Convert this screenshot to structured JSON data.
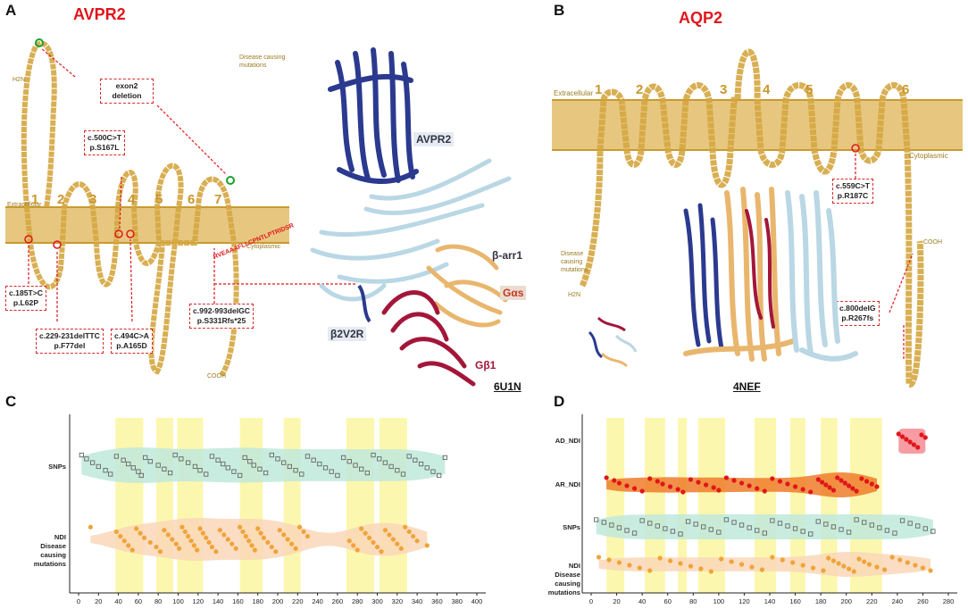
{
  "panels": {
    "A": {
      "letter": "A",
      "title": "AVPR2",
      "membrane_numbers": [
        "1",
        "2",
        "3",
        "4",
        "5",
        "6",
        "7"
      ],
      "extracellular_label": "Extracellular",
      "cytoplasmic_label": "Cytoplasmic",
      "nterm_label": "H2N",
      "cterm_label": "COOH",
      "legend": "Disease causing mutations",
      "annotations": {
        "exon2": "exon2 deletion",
        "c500": "c.500C>T\np.S167L",
        "c185": "c.185T>C\np.L62P",
        "c229": "c.229-231delTTC\np.F77del",
        "c494": "c.494C>A\np.A165D",
        "c992": "c.992-993delGC\np.S331Rfs*25"
      },
      "structure_labels": {
        "avpr2": "AVPR2",
        "barr1": "β-arr1",
        "gas": "Gαs",
        "b2v2r": "β2V2R",
        "gb1": "Gβ1"
      },
      "pdb": "6U1N",
      "cterm_sequence_text": "RVEAAAFLLCPNTLPTRIDSR"
    },
    "B": {
      "letter": "B",
      "title": "AQP2",
      "membrane_numbers": [
        "1",
        "2",
        "3",
        "4",
        "5",
        "6"
      ],
      "extracellular_label": "Extracellular",
      "cytoplasmic_label": "Cytoplasmic",
      "nterm_label": "H2N",
      "cterm_label": "COOH",
      "legend": "Disease causing mutations",
      "annotations": {
        "c559": "c.559C>T\np.R187C",
        "c800": "c.800delG\np.R267fs"
      },
      "pdb": "4NEF"
    },
    "C": {
      "letter": "C",
      "categories": [
        "SNPs",
        "NDI\nDisease\ncausing\nmutations"
      ]
    },
    "D": {
      "letter": "D",
      "categories": [
        "AD_NDI",
        "AR_NDI",
        "SNPs",
        "NDI\nDisease\ncausing\nmutations"
      ]
    }
  },
  "colors": {
    "membrane": "#e3bd6a",
    "residue": "#d4a640",
    "red": "#e0161b",
    "highlight": "#fbf59a",
    "snp_violin": "#bfe9dc",
    "ndi_violin": "#f9d7b8",
    "ar_violin": "#ef7d2a",
    "ad_violin": "#f48b92",
    "snp_marker": "#666666",
    "ndi_marker": "#f0a33a",
    "blue_helix": "#2b3a8f",
    "lightblue_helix": "#b9d7e4",
    "orange_helix": "#e9b66d",
    "crimson_helix": "#a3163a"
  },
  "chart_data": [
    {
      "type": "scatter",
      "title": "",
      "xlabel": "",
      "ylabel": "",
      "xlim": [
        0,
        400
      ],
      "x_ticks": [
        0,
        20,
        40,
        60,
        80,
        100,
        120,
        140,
        160,
        180,
        200,
        220,
        240,
        260,
        280,
        300,
        320,
        340,
        360,
        380,
        400
      ],
      "grid": false,
      "highlight_regions": [
        [
          37,
          65
        ],
        [
          78,
          95
        ],
        [
          99,
          125
        ],
        [
          162,
          185
        ],
        [
          206,
          223
        ],
        [
          269,
          297
        ],
        [
          302,
          330
        ]
      ],
      "series": [
        {
          "name": "SNPs",
          "marker": "square",
          "x": [
            3,
            8,
            14,
            20,
            27,
            32,
            38,
            45,
            50,
            55,
            60,
            63,
            67,
            72,
            80,
            86,
            92,
            97,
            103,
            110,
            117,
            122,
            128,
            134,
            140,
            145,
            150,
            156,
            162,
            167,
            172,
            176,
            182,
            188,
            194,
            200,
            206,
            212,
            218,
            224,
            230,
            236,
            242,
            248,
            254,
            260,
            266,
            272,
            278,
            284,
            290,
            296,
            302,
            308,
            314,
            320,
            326,
            332,
            338,
            344,
            350,
            356,
            362,
            368
          ]
        },
        {
          "name": "NDI Disease causing mutations",
          "marker": "circle",
          "x": [
            12,
            38,
            42,
            46,
            50,
            54,
            58,
            62,
            66,
            72,
            78,
            82,
            86,
            90,
            94,
            98,
            101,
            104,
            107,
            110,
            113,
            116,
            119,
            122,
            125,
            128,
            131,
            134,
            138,
            142,
            146,
            150,
            154,
            158,
            162,
            165,
            168,
            171,
            174,
            177,
            180,
            183,
            186,
            190,
            194,
            198,
            202,
            206,
            210,
            214,
            218,
            222,
            226,
            230,
            272,
            276,
            280,
            284,
            288,
            292,
            296,
            300,
            304,
            308,
            312,
            316,
            320,
            324,
            328,
            332,
            336,
            340,
            350
          ]
        }
      ]
    },
    {
      "type": "scatter",
      "title": "",
      "xlabel": "",
      "ylabel": "",
      "xlim": [
        0,
        280
      ],
      "x_ticks": [
        0,
        20,
        40,
        60,
        80,
        100,
        120,
        140,
        160,
        180,
        200,
        220,
        240,
        260,
        280
      ],
      "grid": false,
      "highlight_regions": [
        [
          12,
          26
        ],
        [
          42,
          58
        ],
        [
          68,
          75
        ],
        [
          84,
          105
        ],
        [
          128,
          145
        ],
        [
          156,
          168
        ],
        [
          180,
          193
        ],
        [
          203,
          228
        ]
      ],
      "series": [
        {
          "name": "AD_NDI",
          "marker": "circle",
          "x": [
            241,
            244,
            247,
            250,
            253,
            256,
            259,
            262
          ]
        },
        {
          "name": "AR_NDI",
          "marker": "circle",
          "x": [
            12,
            18,
            22,
            28,
            34,
            40,
            46,
            52,
            56,
            62,
            68,
            72,
            78,
            84,
            90,
            96,
            100,
            106,
            112,
            118,
            124,
            130,
            136,
            142,
            148,
            154,
            160,
            166,
            172,
            178,
            181,
            184,
            187,
            190,
            193,
            196,
            199,
            202,
            205,
            208,
            212,
            216,
            220,
            224
          ]
        },
        {
          "name": "SNPs",
          "marker": "square",
          "x": [
            4,
            10,
            16,
            22,
            28,
            34,
            40,
            46,
            52,
            58,
            64,
            70,
            76,
            82,
            88,
            94,
            100,
            106,
            112,
            118,
            124,
            130,
            136,
            142,
            148,
            154,
            160,
            166,
            172,
            178,
            184,
            190,
            196,
            202,
            208,
            214,
            220,
            226,
            232,
            238,
            244,
            250,
            256,
            262,
            268
          ]
        },
        {
          "name": "NDI Disease causing mutations",
          "marker": "circle",
          "x": [
            6,
            14,
            22,
            30,
            38,
            46,
            54,
            62,
            70,
            78,
            86,
            94,
            102,
            110,
            118,
            126,
            134,
            142,
            150,
            158,
            166,
            174,
            182,
            186,
            190,
            194,
            198,
            202,
            206,
            210,
            214,
            218,
            224,
            230,
            236,
            242,
            248,
            254,
            260,
            266
          ]
        }
      ]
    }
  ]
}
